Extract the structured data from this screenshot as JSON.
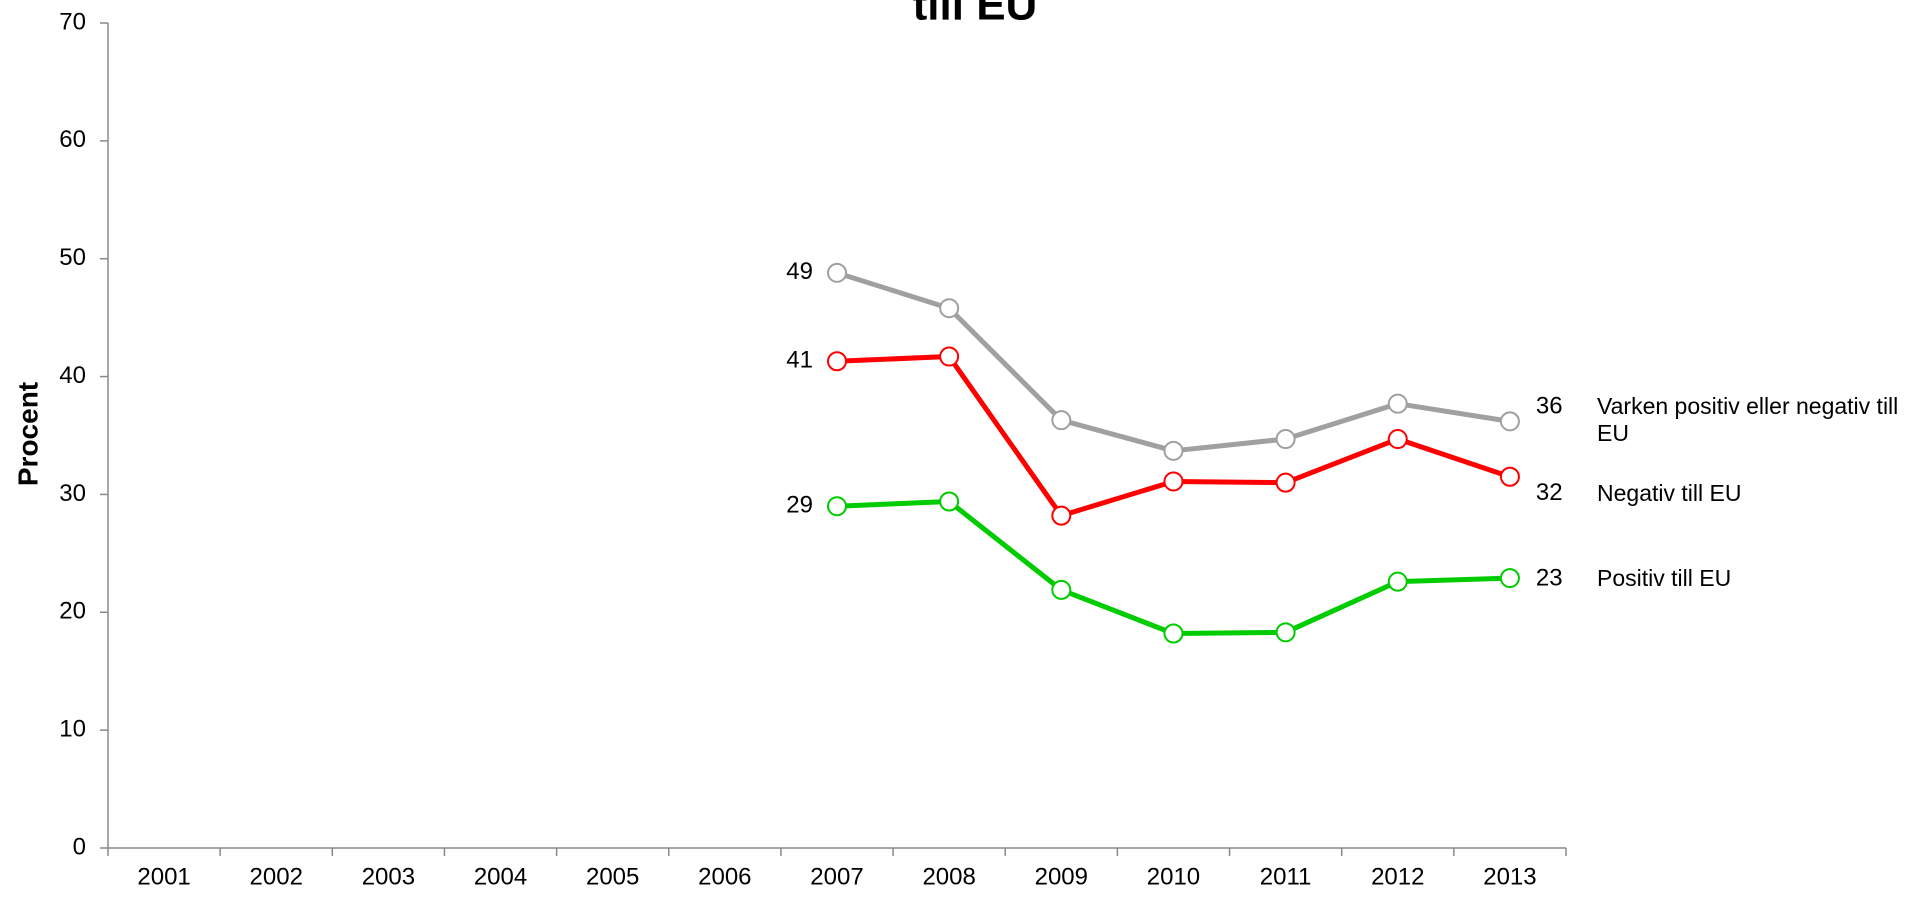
{
  "chart_data": {
    "type": "line",
    "title": "till EU",
    "y_label": "Procent",
    "categories": [
      "2001",
      "2002",
      "2003",
      "2004",
      "2005",
      "2006",
      "2007",
      "2008",
      "2009",
      "2010",
      "2011",
      "2012",
      "2013"
    ],
    "series": [
      {
        "name": "Varken positiv eller negativ till EU",
        "color": "#a0a0a0",
        "values": [
          null,
          null,
          null,
          null,
          null,
          null,
          48.8,
          45.8,
          36.3,
          33.7,
          34.7,
          37.7,
          36.2
        ],
        "value_labels": [
          null,
          null,
          null,
          null,
          null,
          null,
          "49",
          null,
          null,
          null,
          null,
          null,
          "36"
        ]
      },
      {
        "name": "Negativ till EU",
        "color": "#ff0000",
        "values": [
          null,
          null,
          null,
          null,
          null,
          null,
          41.3,
          41.7,
          28.2,
          31.1,
          31.0,
          34.7,
          31.5
        ],
        "value_labels": [
          null,
          null,
          null,
          null,
          null,
          null,
          "41",
          null,
          null,
          null,
          null,
          null,
          "32"
        ]
      },
      {
        "name": "Positiv till EU",
        "color": "#00cc00",
        "values": [
          null,
          null,
          null,
          null,
          null,
          null,
          29.0,
          29.4,
          21.9,
          18.2,
          18.3,
          22.6,
          22.9
        ],
        "value_labels": [
          null,
          null,
          null,
          null,
          null,
          null,
          "29",
          null,
          null,
          null,
          null,
          null,
          "23"
        ]
      }
    ],
    "ylim": [
      0,
      70
    ],
    "yticks": [
      0,
      10,
      20,
      30,
      40,
      50,
      60,
      70
    ],
    "grid": false
  }
}
